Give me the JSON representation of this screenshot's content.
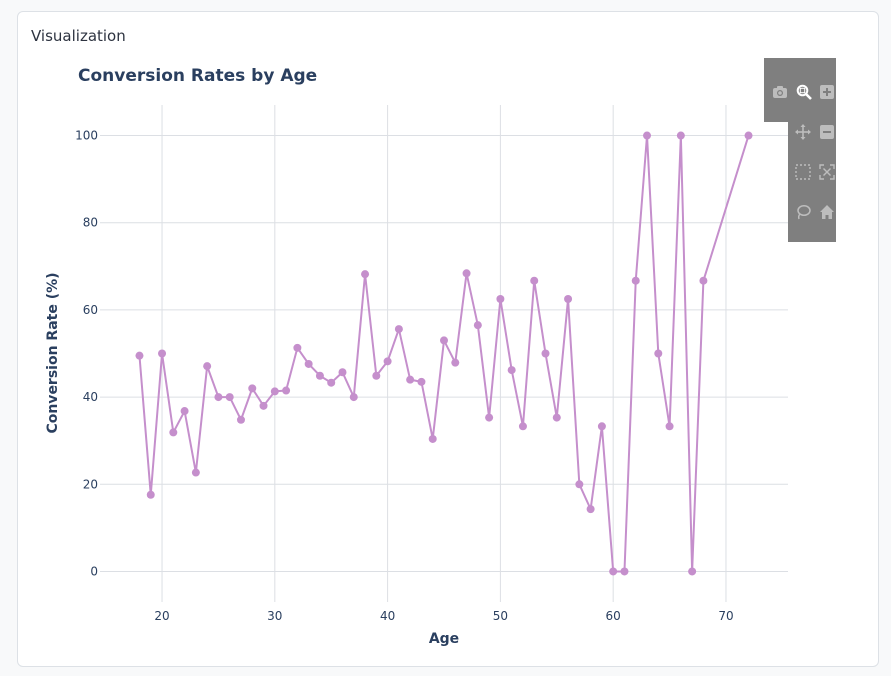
{
  "panel": {
    "title": "Visualization"
  },
  "modebar": {
    "buttons": [
      {
        "icon": "camera-icon",
        "name": "download-plot-button"
      },
      {
        "icon": "zoom-icon",
        "name": "zoom-button"
      },
      {
        "icon": "zoom-in-icon",
        "name": "zoom-in-button"
      },
      {
        "icon": "pan-icon",
        "name": "pan-button"
      },
      {
        "icon": "zoom-out-icon",
        "name": "zoom-out-button"
      },
      {
        "icon": "box-select-icon",
        "name": "box-select-button"
      },
      {
        "icon": "autoscale-icon",
        "name": "autoscale-button"
      },
      {
        "icon": "lasso-icon",
        "name": "lasso-select-button"
      },
      {
        "icon": "home-icon",
        "name": "reset-axes-button"
      }
    ]
  },
  "chart_data": {
    "type": "line",
    "title": "Conversion Rates by Age",
    "xlabel": "Age",
    "ylabel": "Conversion Rate (%)",
    "xlim": [
      14.5,
      75.5
    ],
    "ylim": [
      -7,
      107
    ],
    "xticks": [
      20,
      30,
      40,
      50,
      60,
      70
    ],
    "yticks": [
      0,
      20,
      40,
      60,
      80,
      100
    ],
    "grid": true,
    "series": [
      {
        "color": "#c58fcc",
        "x": [
          18,
          19,
          20,
          21,
          22,
          23,
          24,
          25,
          26,
          27,
          28,
          29,
          30,
          31,
          32,
          33,
          34,
          35,
          36,
          37,
          38,
          39,
          40,
          41,
          42,
          43,
          44,
          45,
          46,
          47,
          48,
          49,
          50,
          51,
          52,
          53,
          54,
          55,
          56,
          57,
          58,
          59,
          60,
          61,
          62,
          63,
          64,
          65,
          66,
          67,
          68,
          72
        ],
        "y": [
          49.5,
          17.6,
          50.0,
          31.9,
          36.8,
          22.7,
          47.1,
          40.0,
          40.0,
          34.8,
          42.0,
          38.0,
          41.3,
          41.5,
          51.3,
          47.6,
          44.9,
          43.3,
          45.7,
          40.0,
          68.2,
          44.9,
          48.2,
          55.6,
          44.0,
          43.5,
          30.4,
          53.0,
          47.9,
          68.4,
          56.5,
          35.3,
          62.5,
          46.2,
          33.3,
          66.7,
          50.0,
          35.3,
          62.5,
          20.0,
          14.3,
          33.3,
          0,
          0,
          66.7,
          100,
          50.0,
          33.3,
          100,
          0,
          66.7,
          100
        ]
      }
    ]
  }
}
